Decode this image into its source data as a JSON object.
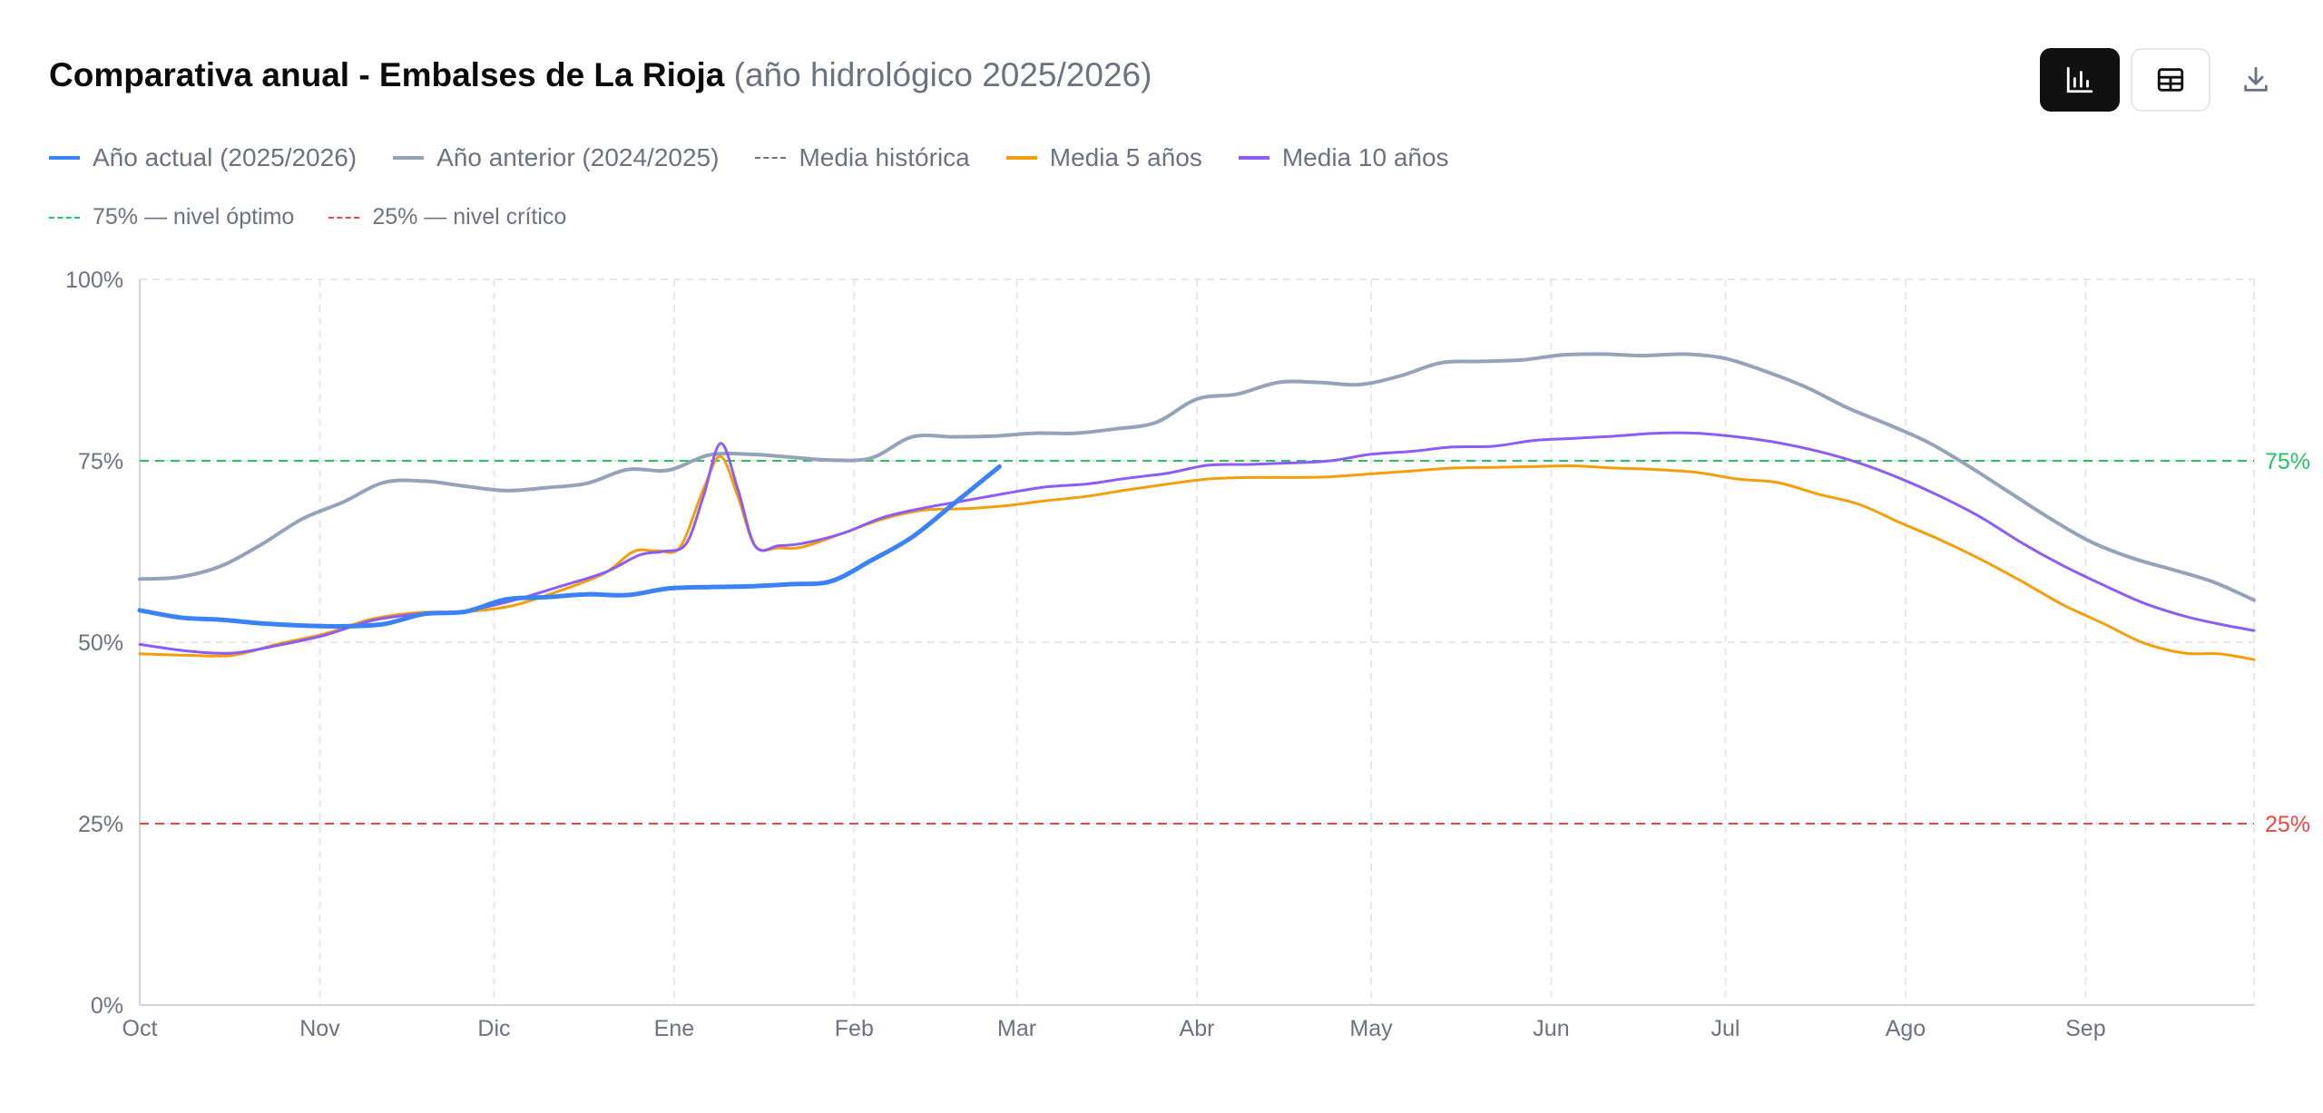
{
  "header": {
    "title": "Comparativa anual - Embalses de La Rioja",
    "subtitle": "(año hidrológico 2025/2026)"
  },
  "toolbar": {
    "chart_view_icon": "bar-chart-icon",
    "table_view_icon": "table-icon",
    "download_icon": "download-icon"
  },
  "legend": {
    "row1": [
      {
        "label": "Año actual (2025/2026)",
        "color": "#3b82f6",
        "style": "solid"
      },
      {
        "label": "Año anterior (2024/2025)",
        "color": "#94a3b8",
        "style": "solid"
      },
      {
        "label": "Media histórica",
        "color": "#6b7280",
        "style": "dashed"
      },
      {
        "label": "Media 5 años",
        "color": "#f59e0b",
        "style": "solid"
      },
      {
        "label": "Media 10 años",
        "color": "#8b5cf6",
        "style": "solid"
      }
    ],
    "row2": [
      {
        "label": "75% — nivel óptimo",
        "color": "#22c55e",
        "style": "dashed"
      },
      {
        "label": "25% — nivel crítico",
        "color": "#ef4444",
        "style": "dashed"
      }
    ]
  },
  "chart_data": {
    "type": "line",
    "x_unit": "days since 1 Oct",
    "ylim": [
      0,
      100
    ],
    "yticks": [
      {
        "v": 0,
        "label": "0%"
      },
      {
        "v": 25,
        "label": "25%"
      },
      {
        "v": 50,
        "label": "50%"
      },
      {
        "v": 75,
        "label": "75%"
      },
      {
        "v": 100,
        "label": "100%"
      }
    ],
    "months": [
      {
        "label": "Oct",
        "day": 0
      },
      {
        "label": "Nov",
        "day": 31
      },
      {
        "label": "Dic",
        "day": 61
      },
      {
        "label": "Ene",
        "day": 92
      },
      {
        "label": "Feb",
        "day": 123
      },
      {
        "label": "Mar",
        "day": 151
      },
      {
        "label": "Abr",
        "day": 182
      },
      {
        "label": "May",
        "day": 212
      },
      {
        "label": "Jun",
        "day": 243
      },
      {
        "label": "Jul",
        "day": 273
      },
      {
        "label": "Ago",
        "day": 304
      },
      {
        "label": "Sep",
        "day": 335
      }
    ],
    "x_end": 364,
    "references": [
      {
        "name": "75% — nivel óptimo",
        "value": 75,
        "color": "#22c55e",
        "edge_label": "75%"
      },
      {
        "name": "25% — nivel crítico",
        "value": 25,
        "color": "#ef4444",
        "edge_label": "25%"
      }
    ],
    "series": [
      {
        "name": "Año anterior (2024/2025)",
        "color": "#94a3b8",
        "width": 4,
        "points": [
          [
            0,
            58.7
          ],
          [
            7,
            59.0
          ],
          [
            14,
            60.5
          ],
          [
            21,
            63.5
          ],
          [
            28,
            67.0
          ],
          [
            35,
            69.3
          ],
          [
            42,
            72.0
          ],
          [
            49,
            72.2
          ],
          [
            56,
            71.5
          ],
          [
            63,
            70.9
          ],
          [
            70,
            71.3
          ],
          [
            77,
            71.9
          ],
          [
            84,
            73.8
          ],
          [
            91,
            73.7
          ],
          [
            98,
            75.8
          ],
          [
            105,
            75.9
          ],
          [
            112,
            75.5
          ],
          [
            119,
            75.1
          ],
          [
            126,
            75.4
          ],
          [
            133,
            78.3
          ],
          [
            140,
            78.3
          ],
          [
            147,
            78.4
          ],
          [
            154,
            78.8
          ],
          [
            161,
            78.8
          ],
          [
            168,
            79.4
          ],
          [
            175,
            80.3
          ],
          [
            182,
            83.5
          ],
          [
            189,
            84.2
          ],
          [
            196,
            85.8
          ],
          [
            203,
            85.8
          ],
          [
            210,
            85.5
          ],
          [
            217,
            86.7
          ],
          [
            224,
            88.5
          ],
          [
            231,
            88.7
          ],
          [
            238,
            88.9
          ],
          [
            245,
            89.6
          ],
          [
            252,
            89.7
          ],
          [
            259,
            89.5
          ],
          [
            266,
            89.7
          ],
          [
            273,
            89.1
          ],
          [
            280,
            87.3
          ],
          [
            287,
            85.1
          ],
          [
            294,
            82.3
          ],
          [
            301,
            80.0
          ],
          [
            308,
            77.5
          ],
          [
            315,
            74.2
          ],
          [
            322,
            70.6
          ],
          [
            329,
            67.0
          ],
          [
            336,
            63.8
          ],
          [
            343,
            61.6
          ],
          [
            350,
            60.0
          ],
          [
            357,
            58.3
          ],
          [
            364,
            55.8
          ]
        ]
      },
      {
        "name": "Media 5 años",
        "color": "#f59e0b",
        "width": 3,
        "points": [
          [
            0,
            48.4
          ],
          [
            8,
            48.2
          ],
          [
            16,
            48.2
          ],
          [
            24,
            49.8
          ],
          [
            32,
            51.2
          ],
          [
            40,
            53.2
          ],
          [
            48,
            54.1
          ],
          [
            56,
            54.2
          ],
          [
            64,
            55.0
          ],
          [
            72,
            57.0
          ],
          [
            80,
            59.5
          ],
          [
            85,
            62.5
          ],
          [
            89,
            62.6
          ],
          [
            93,
            63.1
          ],
          [
            97,
            71.0
          ],
          [
            100,
            75.6
          ],
          [
            103,
            70.0
          ],
          [
            106,
            63.2
          ],
          [
            110,
            63.0
          ],
          [
            114,
            63.1
          ],
          [
            121,
            65.0
          ],
          [
            128,
            67.0
          ],
          [
            135,
            68.2
          ],
          [
            142,
            68.4
          ],
          [
            149,
            68.8
          ],
          [
            156,
            69.5
          ],
          [
            163,
            70.1
          ],
          [
            170,
            71.0
          ],
          [
            177,
            71.8
          ],
          [
            184,
            72.5
          ],
          [
            191,
            72.7
          ],
          [
            198,
            72.7
          ],
          [
            205,
            72.8
          ],
          [
            212,
            73.2
          ],
          [
            219,
            73.6
          ],
          [
            226,
            74.0
          ],
          [
            233,
            74.1
          ],
          [
            240,
            74.2
          ],
          [
            247,
            74.3
          ],
          [
            254,
            74.0
          ],
          [
            261,
            73.8
          ],
          [
            268,
            73.4
          ],
          [
            275,
            72.5
          ],
          [
            282,
            72.0
          ],
          [
            289,
            70.4
          ],
          [
            296,
            69.0
          ],
          [
            303,
            66.5
          ],
          [
            310,
            64.1
          ],
          [
            317,
            61.4
          ],
          [
            324,
            58.4
          ],
          [
            331,
            55.2
          ],
          [
            338,
            52.6
          ],
          [
            345,
            49.9
          ],
          [
            352,
            48.5
          ],
          [
            358,
            48.4
          ],
          [
            364,
            47.6
          ]
        ]
      },
      {
        "name": "Media 10 años",
        "color": "#8b5cf6",
        "width": 3,
        "points": [
          [
            0,
            49.7
          ],
          [
            8,
            48.8
          ],
          [
            16,
            48.5
          ],
          [
            24,
            49.6
          ],
          [
            32,
            51.0
          ],
          [
            40,
            53.0
          ],
          [
            48,
            53.9
          ],
          [
            56,
            54.3
          ],
          [
            64,
            55.7
          ],
          [
            72,
            57.6
          ],
          [
            80,
            59.6
          ],
          [
            86,
            62.0
          ],
          [
            90,
            62.5
          ],
          [
            94,
            63.5
          ],
          [
            97,
            70.0
          ],
          [
            100,
            77.4
          ],
          [
            103,
            71.0
          ],
          [
            106,
            63.2
          ],
          [
            110,
            63.3
          ],
          [
            114,
            63.6
          ],
          [
            121,
            65.0
          ],
          [
            128,
            67.2
          ],
          [
            135,
            68.5
          ],
          [
            142,
            69.5
          ],
          [
            149,
            70.5
          ],
          [
            156,
            71.4
          ],
          [
            163,
            71.8
          ],
          [
            170,
            72.6
          ],
          [
            177,
            73.3
          ],
          [
            184,
            74.4
          ],
          [
            191,
            74.5
          ],
          [
            198,
            74.7
          ],
          [
            205,
            75.0
          ],
          [
            212,
            75.9
          ],
          [
            219,
            76.3
          ],
          [
            226,
            76.9
          ],
          [
            233,
            77.0
          ],
          [
            240,
            77.8
          ],
          [
            247,
            78.1
          ],
          [
            254,
            78.4
          ],
          [
            261,
            78.8
          ],
          [
            268,
            78.8
          ],
          [
            275,
            78.3
          ],
          [
            282,
            77.5
          ],
          [
            289,
            76.3
          ],
          [
            296,
            74.7
          ],
          [
            303,
            72.6
          ],
          [
            310,
            70.1
          ],
          [
            317,
            67.2
          ],
          [
            324,
            63.7
          ],
          [
            331,
            60.6
          ],
          [
            338,
            57.9
          ],
          [
            345,
            55.4
          ],
          [
            352,
            53.6
          ],
          [
            358,
            52.5
          ],
          [
            364,
            51.6
          ]
        ]
      },
      {
        "name": "Año actual (2025/2026)",
        "color": "#3b82f6",
        "width": 5,
        "points": [
          [
            0,
            54.4
          ],
          [
            7,
            53.4
          ],
          [
            14,
            53.1
          ],
          [
            21,
            52.6
          ],
          [
            28,
            52.3
          ],
          [
            35,
            52.2
          ],
          [
            42,
            52.5
          ],
          [
            49,
            53.9
          ],
          [
            56,
            54.2
          ],
          [
            63,
            55.9
          ],
          [
            70,
            56.2
          ],
          [
            77,
            56.6
          ],
          [
            84,
            56.5
          ],
          [
            91,
            57.4
          ],
          [
            98,
            57.6
          ],
          [
            105,
            57.7
          ],
          [
            112,
            58.0
          ],
          [
            119,
            58.4
          ],
          [
            126,
            61.3
          ],
          [
            133,
            64.5
          ],
          [
            140,
            69.0
          ],
          [
            148,
            74.2
          ]
        ]
      }
    ]
  }
}
